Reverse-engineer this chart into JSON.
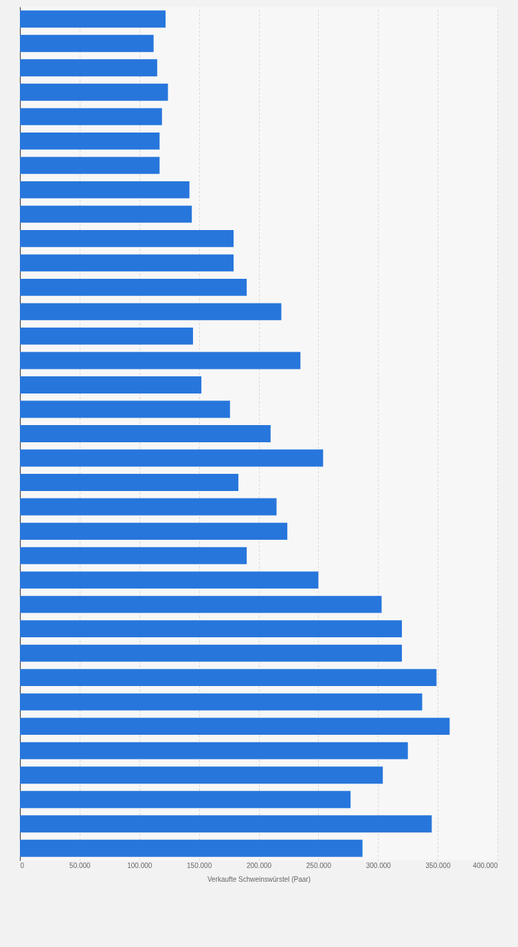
{
  "chart_data": {
    "type": "bar",
    "orientation": "horizontal",
    "xlabel": "Verkaufte Schweinswürstel (Paar)",
    "categories": [
      null,
      null,
      null,
      null,
      null,
      null,
      null,
      null,
      null,
      null,
      null,
      null,
      null,
      null,
      null,
      null,
      null,
      null,
      null,
      null,
      null,
      null,
      null,
      null,
      null,
      null,
      null,
      null,
      null,
      null,
      null,
      null,
      null,
      null,
      null
    ],
    "values": [
      122000,
      112000,
      115000,
      124000,
      119000,
      117000,
      117000,
      142000,
      144000,
      179000,
      179000,
      190000,
      219000,
      145000,
      235000,
      152000,
      176000,
      210000,
      254000,
      183000,
      215000,
      224000,
      190000,
      250000,
      303000,
      320000,
      320000,
      349000,
      337000,
      360000,
      325000,
      304000,
      277000,
      345000,
      287000
    ],
    "color": "#2776dc",
    "xlim": [
      0,
      400000
    ],
    "xticks": [
      {
        "value": 0,
        "label": "0"
      },
      {
        "value": 50000,
        "label": "50.000"
      },
      {
        "value": 100000,
        "label": "100.000"
      },
      {
        "value": 150000,
        "label": "150.000"
      },
      {
        "value": 200000,
        "label": "200.000"
      },
      {
        "value": 250000,
        "label": "250.000"
      },
      {
        "value": 300000,
        "label": "300.000"
      },
      {
        "value": 350000,
        "label": "350.000"
      },
      {
        "value": 400000,
        "label": "400.000"
      }
    ],
    "grid": "x"
  }
}
